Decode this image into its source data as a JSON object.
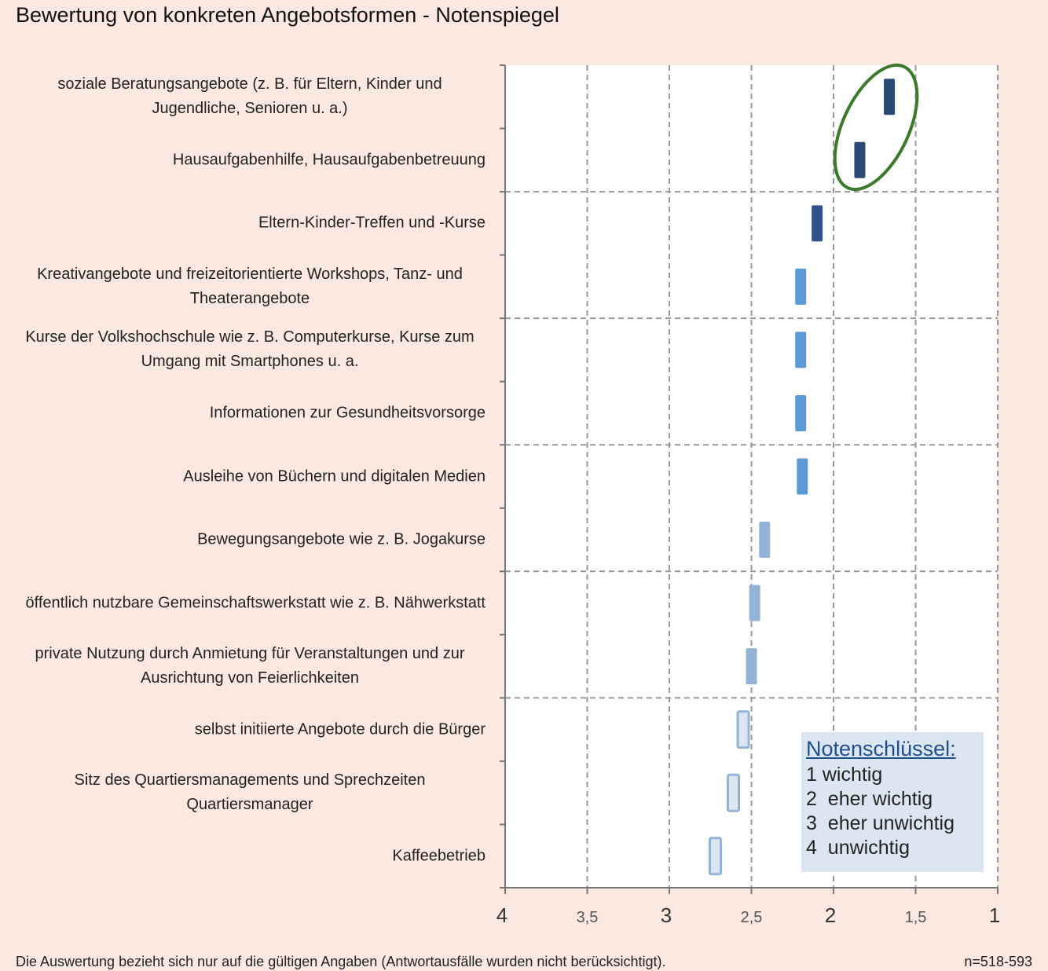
{
  "chart_data": {
    "type": "dot",
    "title": "Bewertung von konkreten Angebotsformen - Notenspiegel",
    "categories": [
      "soziale Beratungsangebote (z. B. für Eltern, Kinder und Jugendliche, Senioren u. a.)",
      "Hausaufgabenhilfe, Hausaufgabenbetreuung",
      "Eltern-Kinder-Treffen und -Kurse",
      "Kreativangebote und freizeitorientierte Workshops, Tanz- und Theaterangebote",
      "Kurse der Volkshochschule wie z. B. Computerkurse, Kurse zum Umgang mit Smartphones u. a.",
      "Informationen zur Gesundheitsvorsorge",
      "Ausleihe von Büchern und digitalen Medien",
      "Bewegungsangebote wie z. B. Jogakurse",
      "öffentlich nutzbare Gemeinschaftswerkstatt wie z. B. Nähwerkstatt",
      "private Nutzung durch Anmietung für Veranstaltungen und zur Ausrichtung von Feierlichkeiten",
      "selbst initiierte Angebote durch die Bürger",
      "Sitz des Quartiersmanagements und Sprechzeiten Quartiersmanager",
      "Kaffeebetrieb"
    ],
    "values": [
      1.66,
      1.84,
      2.1,
      2.2,
      2.2,
      2.2,
      2.19,
      2.42,
      2.48,
      2.5,
      2.55,
      2.61,
      2.72
    ],
    "colors": [
      "#284a75",
      "#284a75",
      "#2e5488",
      "#5b9bd5",
      "#5b9bd5",
      "#5b9bd5",
      "#5b9bd5",
      "#95b3d7",
      "#95b3d7",
      "#95b3d7",
      "#dce6f2",
      "#dce6f2",
      "#dce6f2"
    ],
    "xlim": [
      4,
      1
    ],
    "xticks": [
      4,
      {
        "value": 3.5,
        "label": "3,5"
      },
      3,
      {
        "value": 2.5,
        "label": "2,5"
      },
      2,
      {
        "value": 1.5,
        "label": "1,5"
      },
      1
    ],
    "grid": true,
    "legend": {
      "title": "Notenschlüssel:",
      "items": [
        "1 wichtig",
        "2  eher wichtig",
        "3  eher unwichtig",
        "4  unwichtig"
      ]
    },
    "footnote": "Die Auswertung bezieht sich nur auf die gültigen Angaben (Antwortausfälle wurden nicht berücksichtigt).",
    "sample": "n=518-593"
  }
}
